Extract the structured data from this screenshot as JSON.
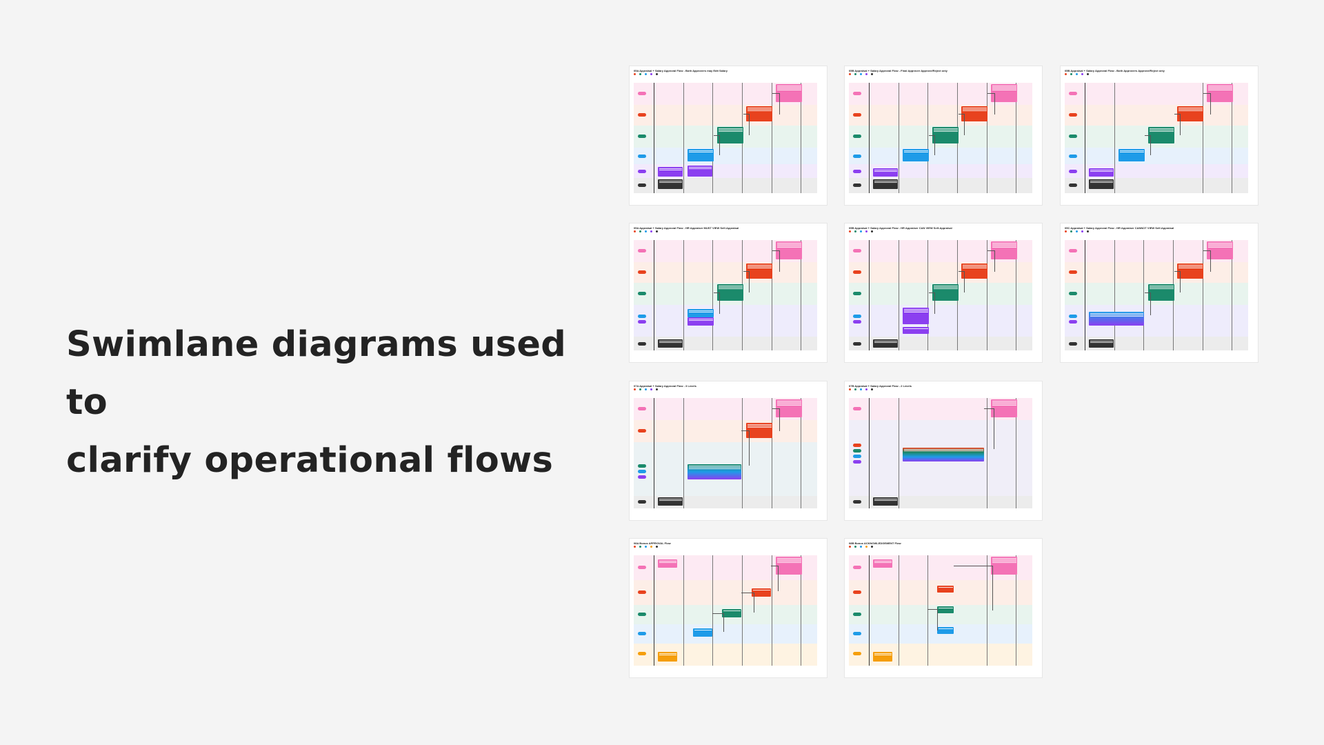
{
  "heading": {
    "line1": "Swimlane diagrams used to",
    "line2": "clarify operational flows"
  },
  "colors": {
    "background": "#f4f4f4",
    "heading": "#232323",
    "pink": "#f472b6",
    "red": "#e8421e",
    "green": "#1b8a6b",
    "blue": "#1e9be8",
    "purple": "#8b3ff0",
    "dark": "#333333",
    "orange": "#f59e0b"
  },
  "diagrams": [
    {
      "id": "d1",
      "title": "05A Appraisal + Salary Approval Flow - Both Approvers may Edit Salary"
    },
    {
      "id": "d2",
      "title": "05B Appraisal + Salary Approval Flow - Final Approver Approve/Reject only"
    },
    {
      "id": "d3",
      "title": "05B Appraisal + Salary Approval Flow - Both Approvers Approve/Reject only"
    },
    {
      "id": "d4",
      "title": "05A Appraisal + Salary Approval Flow - HR Appraiser MUST VIEW Self-Appraisal"
    },
    {
      "id": "d5",
      "title": "05B Appraisal + Salary Approval Flow - HR Appraiser CAN VIEW Self-Appraisal"
    },
    {
      "id": "d6",
      "title": "05C Appraisal + Salary Approval Flow - HR Appraiser CANNOT VIEW Self-Appraisal"
    },
    {
      "id": "d7",
      "title": "07A Appraisal + Salary Approval Flow - 3 Levels"
    },
    {
      "id": "d8",
      "title": "07B Appraisal + Salary Approval Flow - 2 Levels"
    },
    {
      "id": "d9",
      "title": "08A Bonus APPROVAL Flow"
    },
    {
      "id": "d10",
      "title": "08B Bonus ACKNOWLEDGEMENT Flow"
    }
  ]
}
